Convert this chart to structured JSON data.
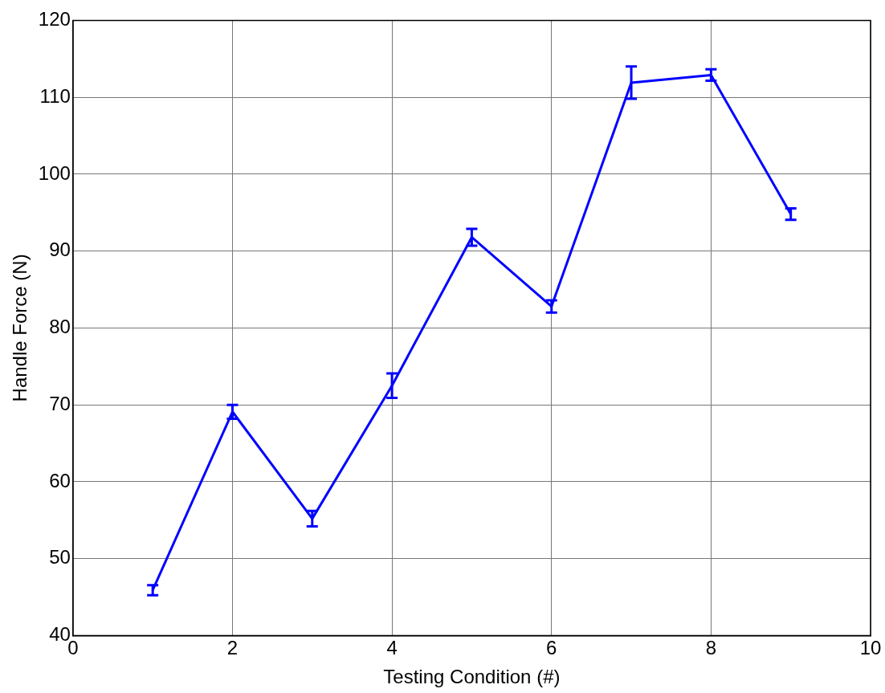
{
  "chart_data": {
    "type": "line",
    "xlabel": "Testing Condition (#)",
    "ylabel": "Handle Force (N)",
    "x": [
      1,
      2,
      3,
      4,
      5,
      6,
      7,
      8,
      9
    ],
    "series": [
      {
        "color": "#0000ff",
        "values": [
          45.9,
          69.1,
          55.2,
          72.5,
          91.8,
          82.8,
          111.9,
          112.9,
          94.8
        ],
        "errors": [
          0.65,
          0.9,
          1.0,
          1.6,
          1.1,
          0.8,
          2.1,
          0.75,
          0.75
        ]
      }
    ],
    "xlim": [
      0,
      10
    ],
    "xticks": [
      0,
      2,
      4,
      6,
      8,
      10
    ],
    "ylim": [
      40,
      120
    ],
    "yticks": [
      40,
      50,
      60,
      70,
      80,
      90,
      100,
      110,
      120
    ],
    "grid": true,
    "legend": false,
    "line_style": "solid"
  }
}
